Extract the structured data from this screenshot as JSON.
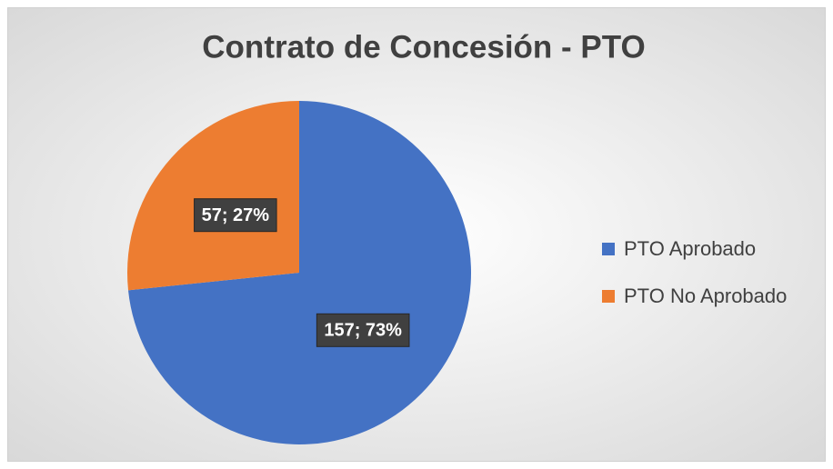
{
  "chart_data": {
    "type": "pie",
    "title": "Contrato de Concesión - PTO",
    "categories": [
      "PTO Aprobado",
      "PTO No Aprobado"
    ],
    "values": [
      157,
      57
    ],
    "value_labels": [
      "157; 73%",
      "57; 27%"
    ],
    "colors": [
      "#4472c4",
      "#ed7d31"
    ],
    "legend": "right"
  }
}
